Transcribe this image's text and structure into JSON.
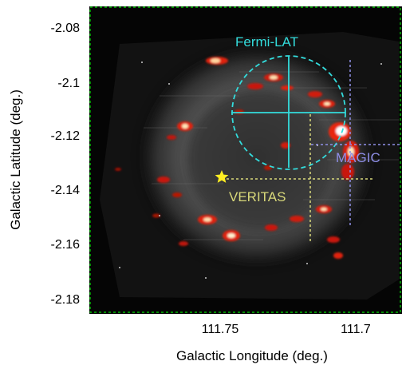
{
  "figure": {
    "xlabel": "Galactic Longitude (deg.)",
    "ylabel": "Galactic Latitude (deg.)",
    "xticks": [
      "111.75",
      "111.7"
    ],
    "yticks": [
      "-2.08",
      "-2.1",
      "-2.12",
      "-2.14",
      "-2.16",
      "-2.18"
    ],
    "background_color": "#050505",
    "frame_color": "#00e000"
  },
  "sources": {
    "fermi": {
      "label": "Fermi-LAT",
      "color": "#33dddd"
    },
    "magic": {
      "label": "MAGIC",
      "color": "#8f8fe8"
    },
    "veritas": {
      "label": "VERITAS",
      "color": "#d8d87a"
    },
    "star_color": "#ffee22"
  }
}
